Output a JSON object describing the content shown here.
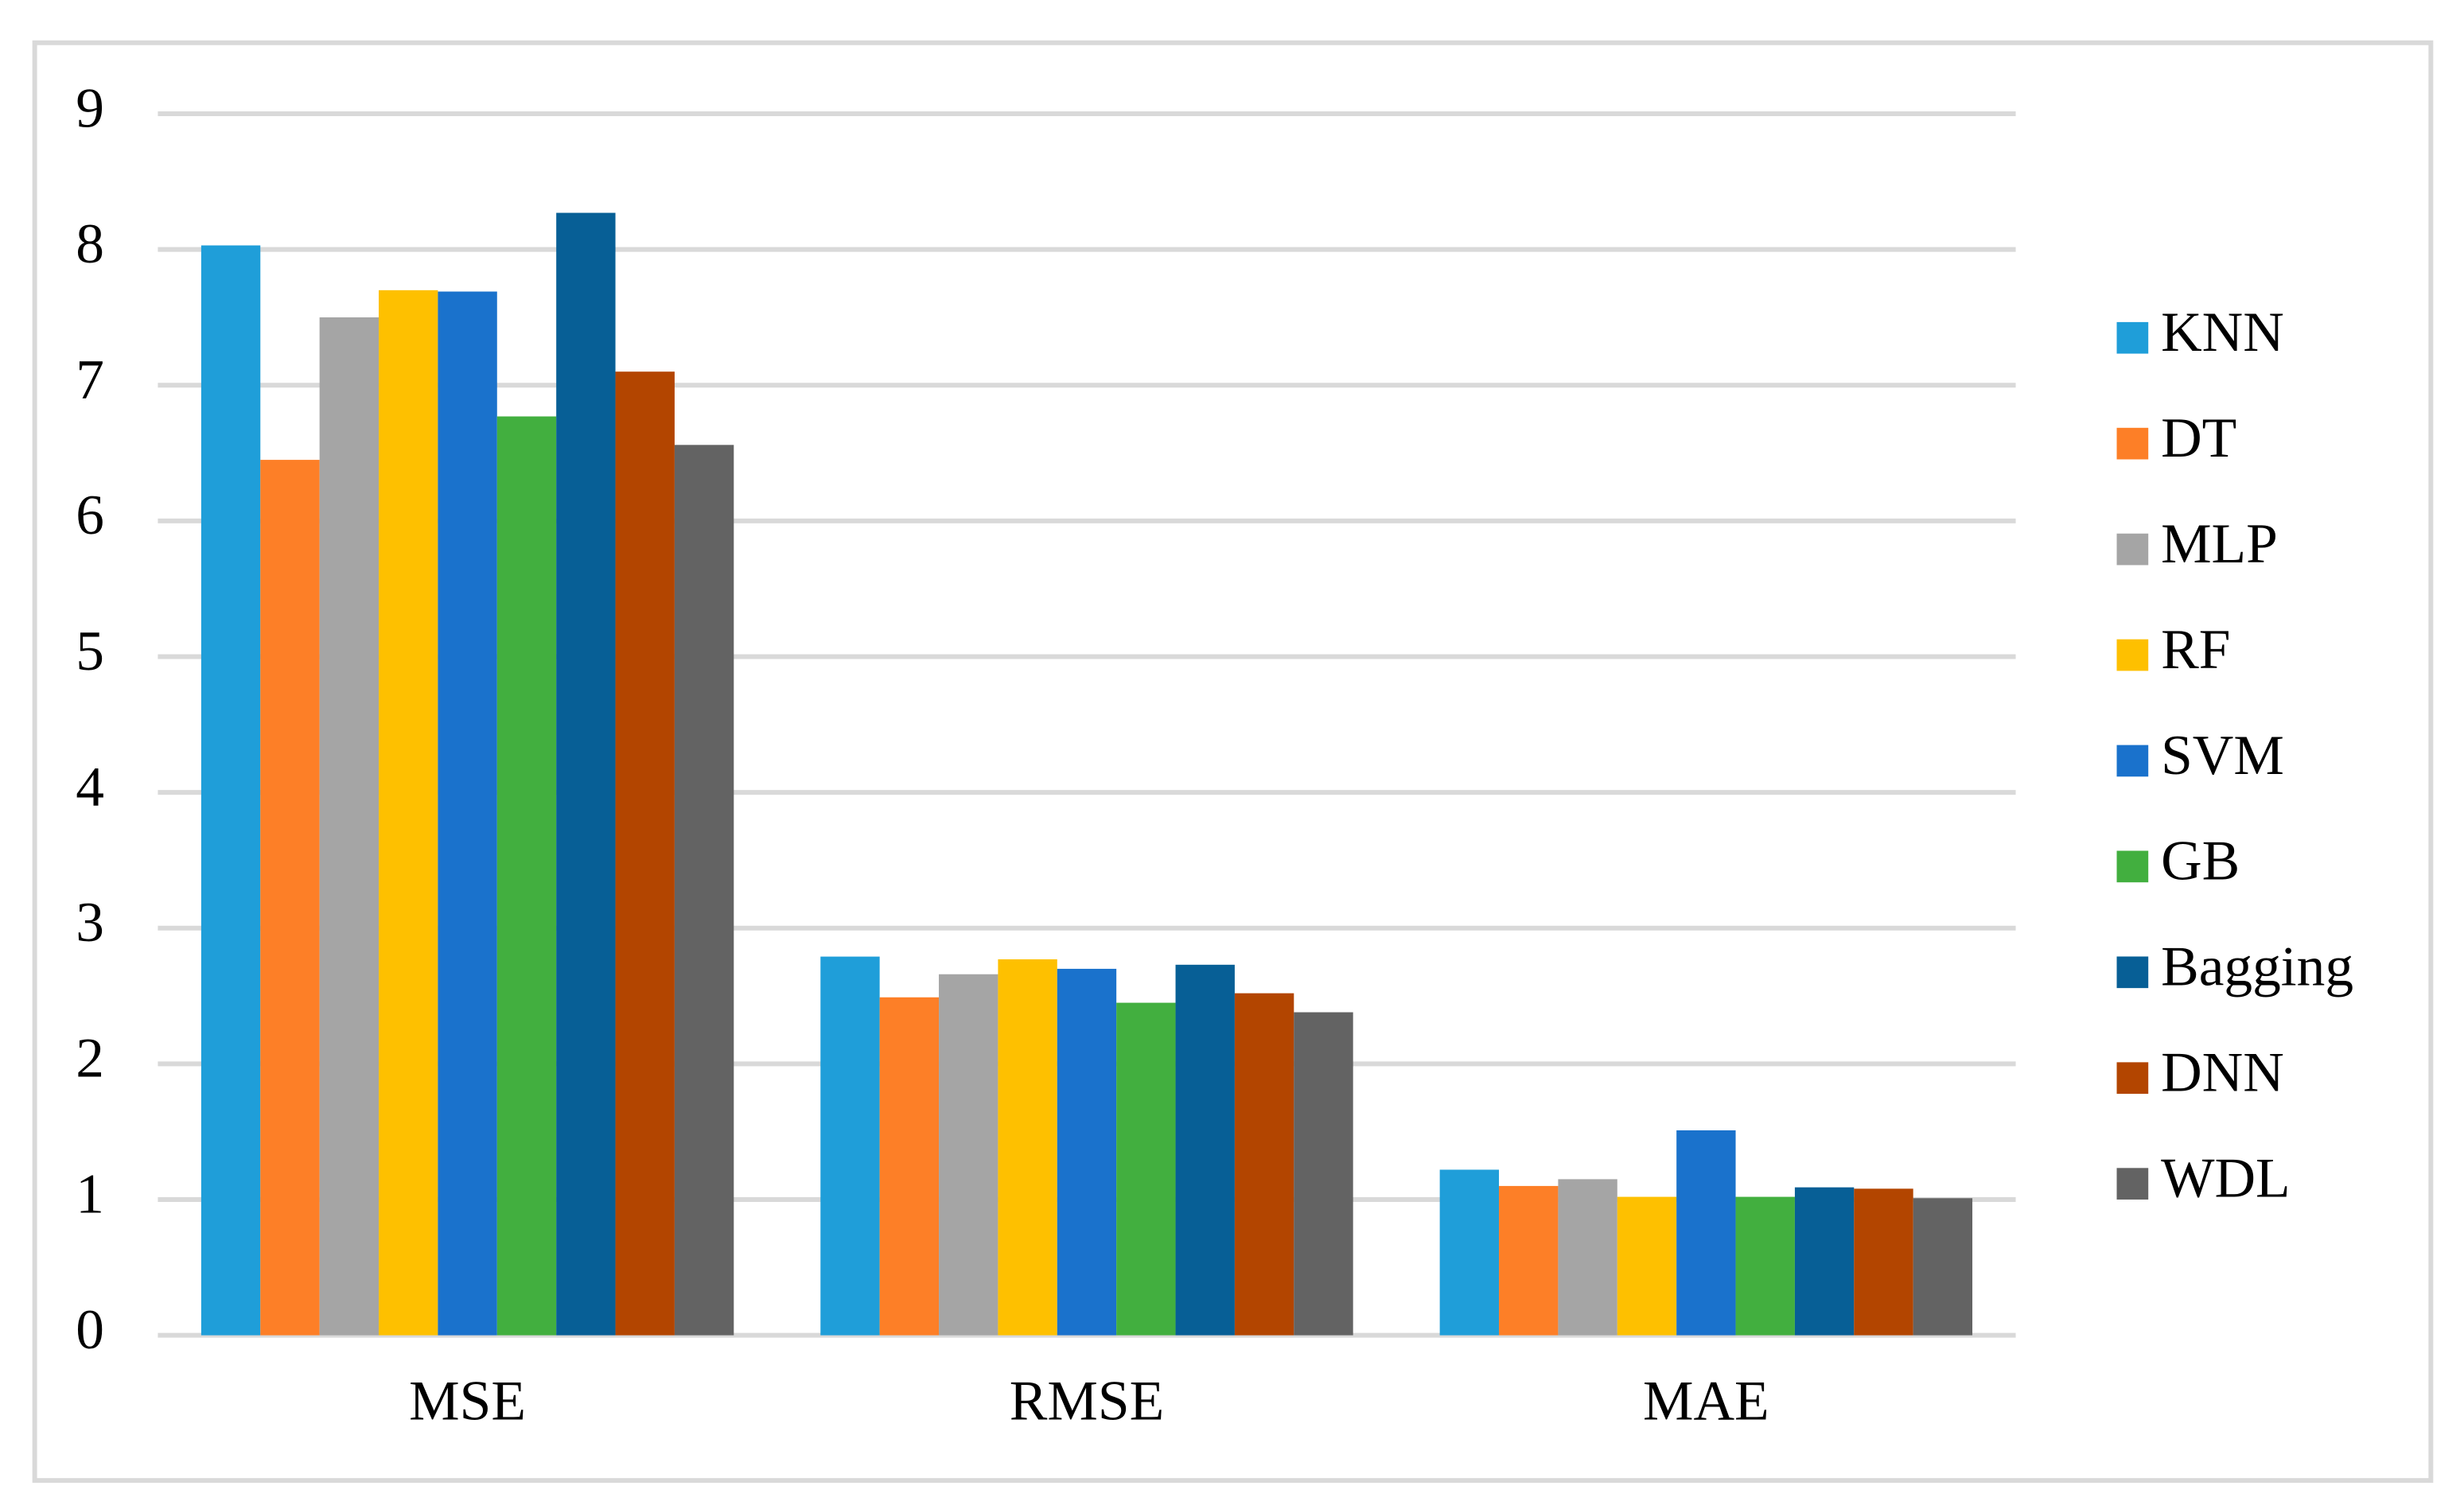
{
  "chart_data": {
    "type": "bar",
    "categories": [
      "MSE",
      "RMSE",
      "MAE"
    ],
    "series": [
      {
        "name": "KNN",
        "color": "#1f9ed9",
        "values": [
          8.03,
          2.79,
          1.22
        ]
      },
      {
        "name": "DT",
        "color": "#fd7f27",
        "values": [
          6.45,
          2.49,
          1.1
        ]
      },
      {
        "name": "MLP",
        "color": "#a5a5a5",
        "values": [
          7.5,
          2.66,
          1.15
        ]
      },
      {
        "name": "RF",
        "color": "#fec000",
        "values": [
          7.7,
          2.77,
          1.02
        ]
      },
      {
        "name": "SVM",
        "color": "#1a72cc",
        "values": [
          7.69,
          2.7,
          1.51
        ]
      },
      {
        "name": "GB",
        "color": "#42af3f",
        "values": [
          6.77,
          2.45,
          1.02
        ]
      },
      {
        "name": "Bagging",
        "color": "#075f96",
        "values": [
          8.27,
          2.73,
          1.09
        ]
      },
      {
        "name": "DNN",
        "color": "#b34500",
        "values": [
          7.1,
          2.52,
          1.08
        ]
      },
      {
        "name": "WDL",
        "color": "#636363",
        "values": [
          6.56,
          2.38,
          1.01
        ]
      }
    ],
    "ylim": [
      0,
      9
    ],
    "yticks": [
      0,
      1,
      2,
      3,
      4,
      5,
      6,
      7,
      8,
      9
    ],
    "grid": true,
    "legend": "right"
  }
}
